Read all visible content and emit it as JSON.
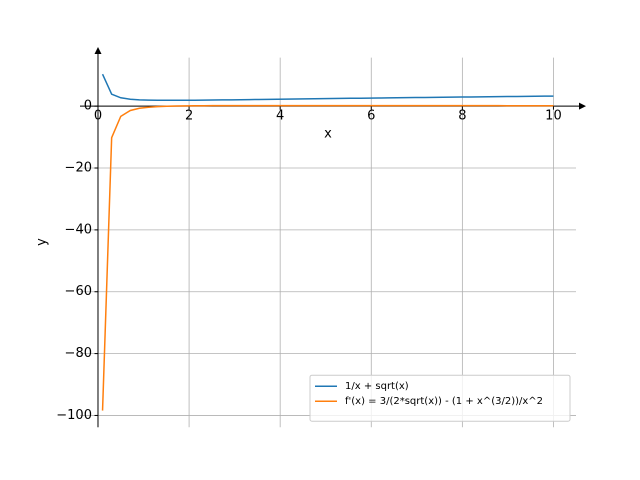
{
  "chart_data": {
    "type": "line",
    "xlabel": "x",
    "ylabel": "y",
    "x": [
      0.1,
      0.3,
      0.5,
      0.71,
      0.91,
      1.11,
      1.31,
      1.51,
      1.72,
      1.92,
      2.12,
      2.32,
      2.52,
      2.73,
      2.93,
      3.13,
      3.33,
      3.53,
      3.74,
      3.94,
      4.14,
      4.34,
      4.54,
      4.75,
      4.95,
      5.15,
      5.35,
      5.55,
      5.76,
      5.96,
      6.16,
      6.36,
      6.56,
      6.77,
      6.97,
      7.17,
      7.37,
      7.57,
      7.78,
      7.98,
      8.18,
      8.38,
      8.58,
      8.79,
      8.99,
      9.19,
      9.39,
      9.59,
      9.8,
      10.0
    ],
    "series": [
      {
        "name": "1/x + sqrt(x)",
        "color": "#1f77b4",
        "values": [
          10.32,
          3.88,
          2.71,
          2.25,
          2.05,
          1.95,
          1.91,
          1.89,
          1.89,
          1.91,
          1.93,
          1.95,
          1.98,
          2.02,
          2.05,
          2.09,
          2.13,
          2.16,
          2.2,
          2.24,
          2.28,
          2.31,
          2.35,
          2.39,
          2.43,
          2.46,
          2.5,
          2.54,
          2.57,
          2.61,
          2.64,
          2.68,
          2.71,
          2.75,
          2.78,
          2.82,
          2.85,
          2.88,
          2.92,
          2.95,
          2.98,
          3.01,
          3.05,
          3.08,
          3.11,
          3.14,
          3.17,
          3.2,
          3.23,
          3.26
        ]
      },
      {
        "name": "f'(x) = 3/(2*sqrt(x)) - (1 + x^(3/2))/x^2",
        "color": "#ff7f0e",
        "values": [
          -98.42,
          -10.2,
          -3.29,
          -1.39,
          -0.68,
          -0.34,
          -0.15,
          -0.03,
          0.04,
          0.09,
          0.12,
          0.14,
          0.16,
          0.17,
          0.18,
          0.18,
          0.18,
          0.19,
          0.19,
          0.19,
          0.19,
          0.19,
          0.19,
          0.19,
          0.18,
          0.18,
          0.18,
          0.18,
          0.18,
          0.18,
          0.18,
          0.17,
          0.17,
          0.17,
          0.17,
          0.17,
          0.17,
          0.16,
          0.16,
          0.16,
          0.16,
          0.16,
          0.16,
          0.16,
          0.15,
          0.15,
          0.15,
          0.15,
          0.15,
          0.15
        ]
      }
    ],
    "xlim": [
      -0.395,
      10.495
    ],
    "ylim": [
      -103.8,
      15.7
    ],
    "xticks": [
      0,
      2,
      4,
      6,
      8,
      10
    ],
    "yticks": [
      {
        "value": -100,
        "label": "−100"
      },
      {
        "value": -80,
        "label": "−80"
      },
      {
        "value": -60,
        "label": "−60"
      },
      {
        "value": -40,
        "label": "−40"
      },
      {
        "value": -20,
        "label": "−20"
      },
      0
    ],
    "grid": true,
    "legend": "lower right"
  }
}
